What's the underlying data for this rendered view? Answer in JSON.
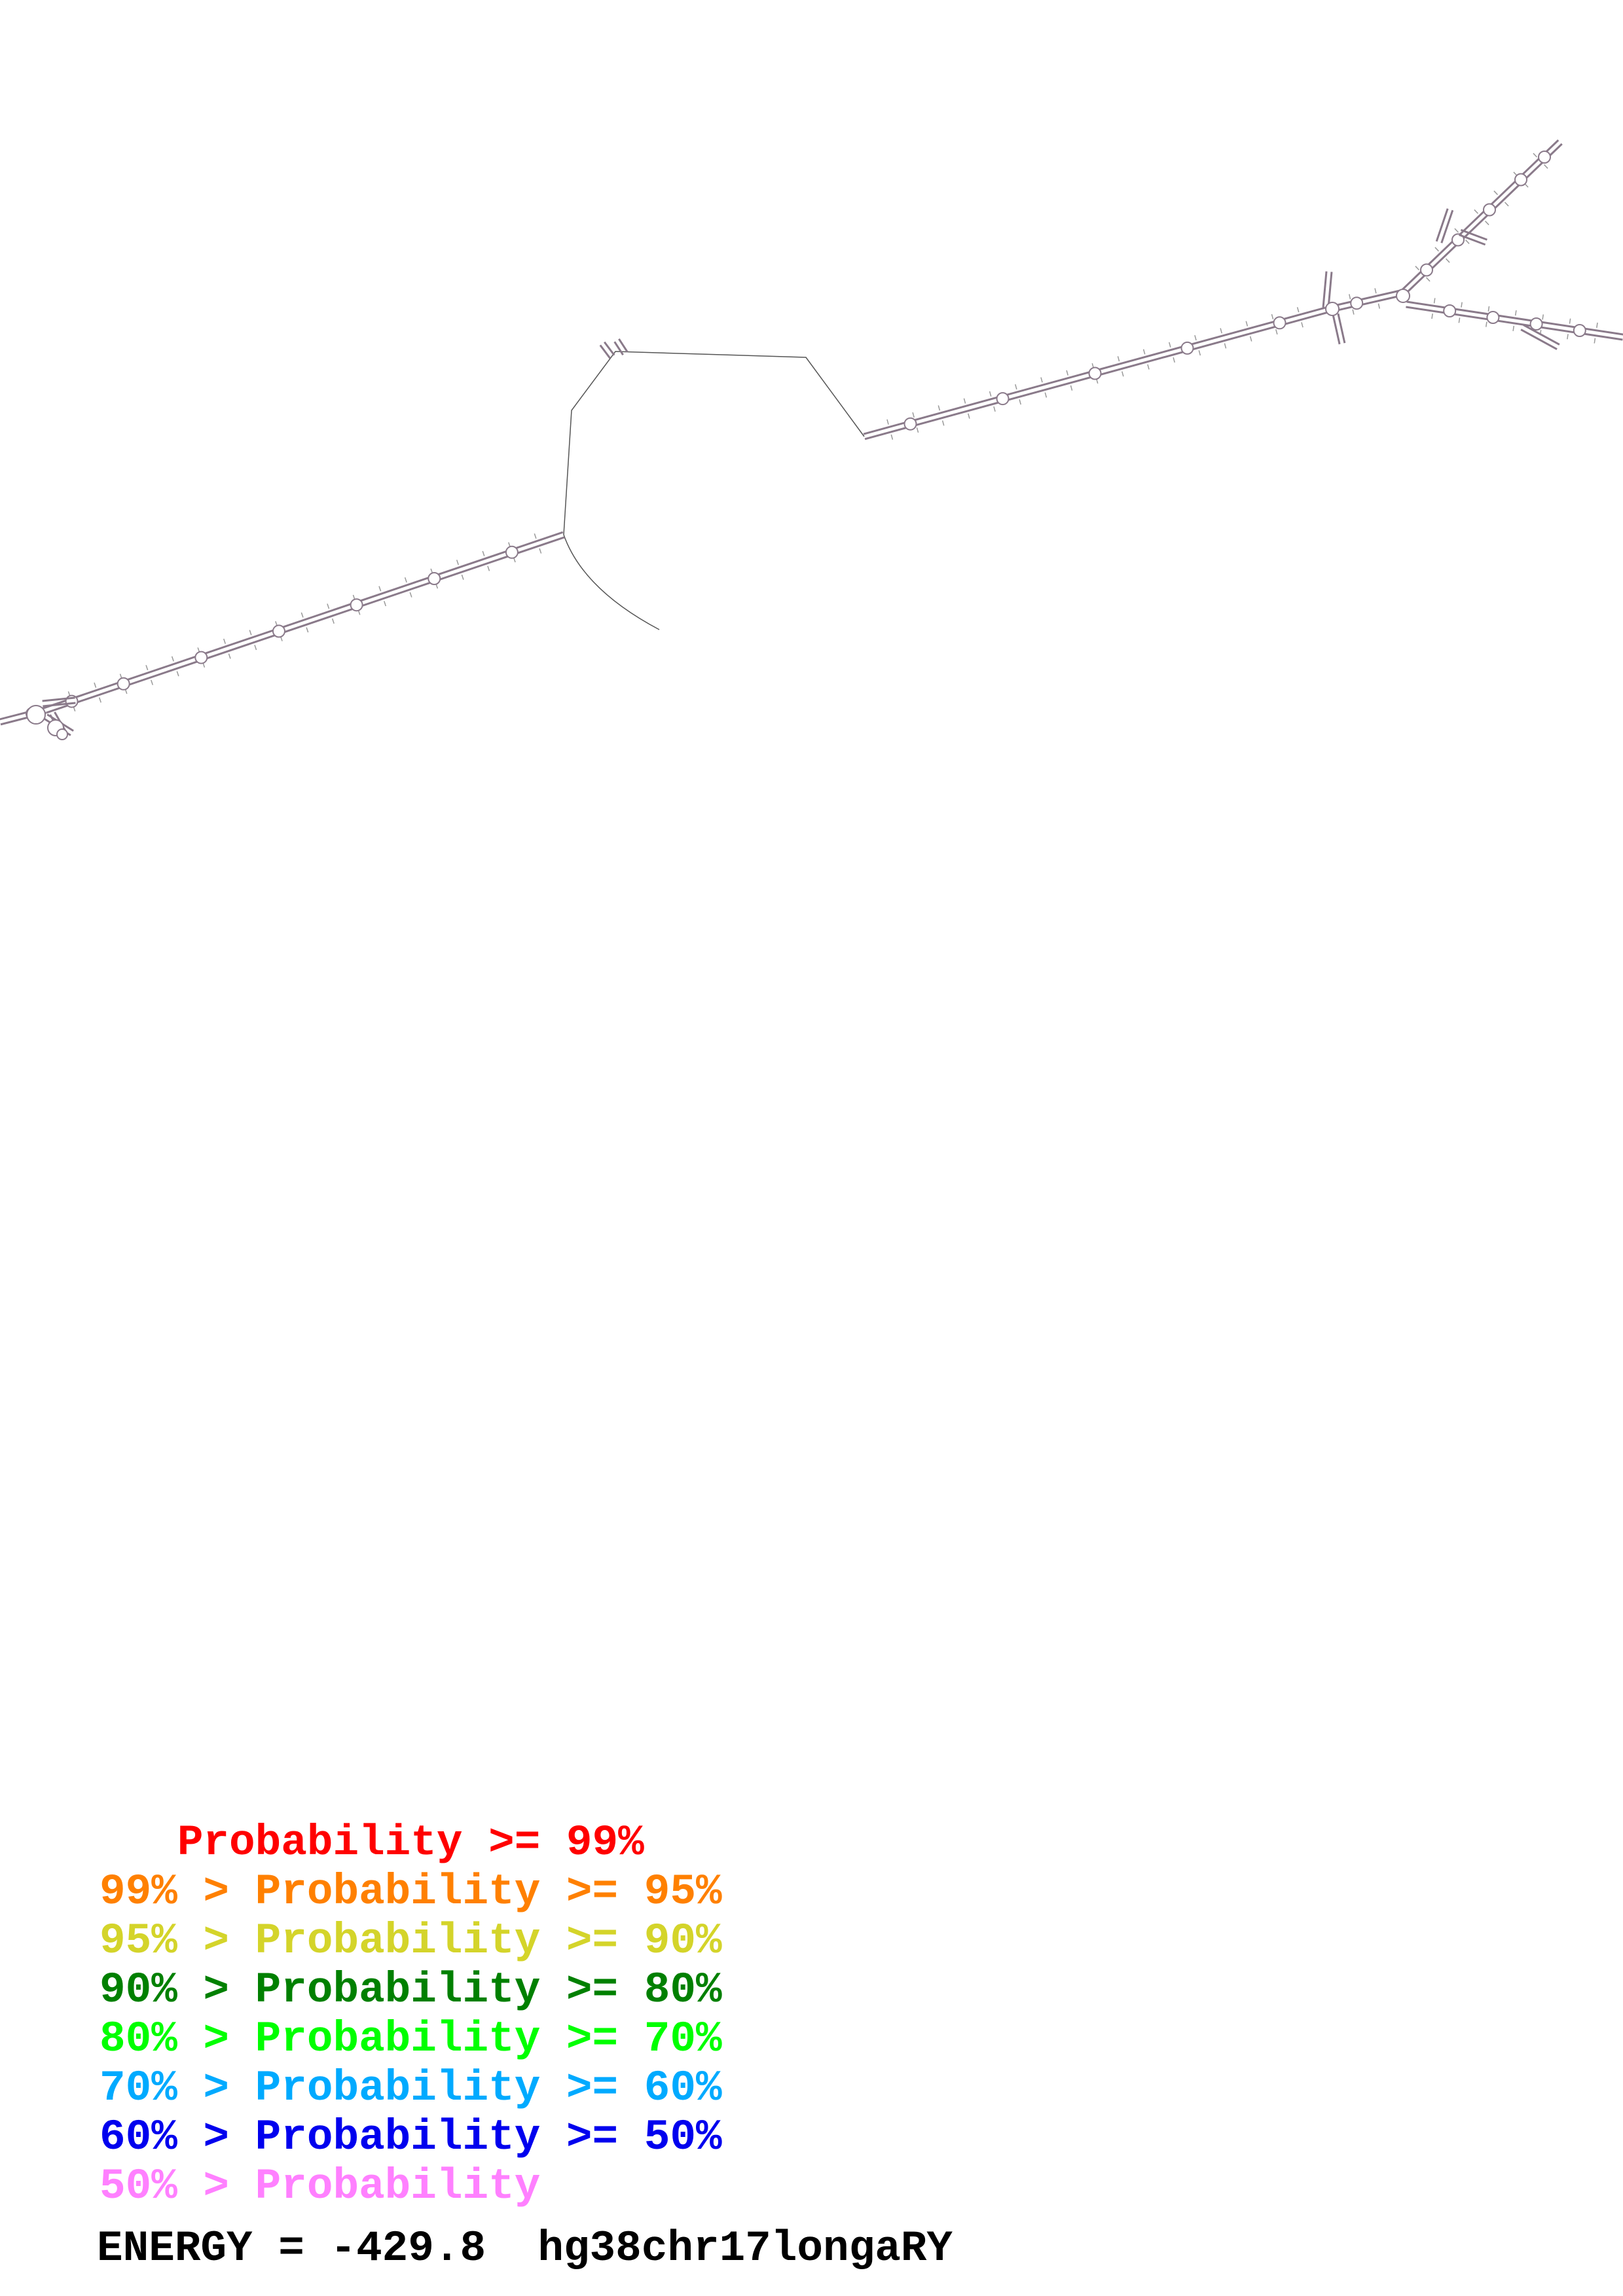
{
  "diagram": {
    "type": "rna-secondary-structure",
    "stem_color": "#8a7a8a",
    "backbone_color": "#555555"
  },
  "legend": [
    {
      "prefix": "   ",
      "label": "Probability >= 99%",
      "color": "#ff0000"
    },
    {
      "prefix": "99% > ",
      "label": "Probability >= 95%",
      "color": "#ff8000"
    },
    {
      "prefix": "95% > ",
      "label": "Probability >= 90%",
      "color": "#d4d42a"
    },
    {
      "prefix": "90% > ",
      "label": "Probability >= 80%",
      "color": "#008000"
    },
    {
      "prefix": "80% > ",
      "label": "Probability >= 70%",
      "color": "#00ff00"
    },
    {
      "prefix": "70% > ",
      "label": "Probability >= 60%",
      "color": "#00aaff"
    },
    {
      "prefix": "60% > ",
      "label": "Probability >= 50%",
      "color": "#0000ee"
    },
    {
      "prefix": "50% > ",
      "label": "Probability",
      "color": "#ff80ff"
    }
  ],
  "energy_label": "ENERGY = -429.8",
  "sequence_name": "hg38chr17longaRY"
}
